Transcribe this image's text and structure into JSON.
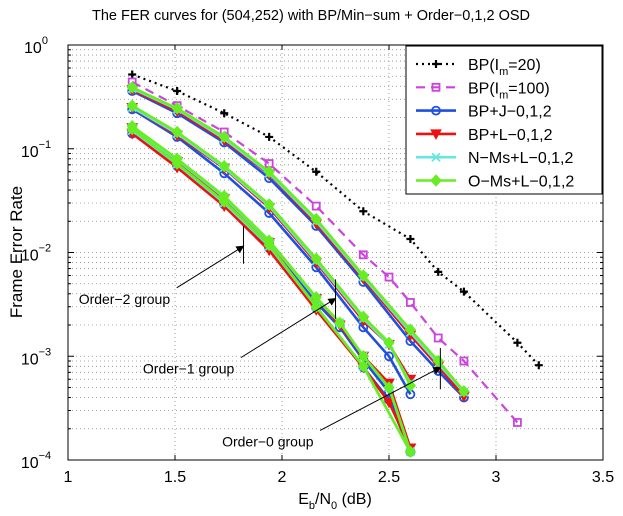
{
  "chart_data": {
    "type": "line",
    "title": "The FER curves for (504,252) with BP/Min−sum + Order−0,1,2 OSD",
    "xlabel": {
      "main": "E",
      "sub1": "b",
      "mid": "/N",
      "sub2": "0",
      "tail": " (dB)"
    },
    "ylabel": "Frame Error Rate",
    "xlim": [
      1,
      3.5
    ],
    "ylim": [
      0.0001,
      1
    ],
    "yscale": "log",
    "grid": true,
    "legend_position": "top-right",
    "x_ticks": [
      1,
      1.5,
      2,
      2.5,
      3,
      3.5
    ],
    "x_tick_labels": [
      "1",
      "1.5",
      "2",
      "2.5",
      "3",
      "3.5"
    ],
    "y_ticks": [
      {
        "base": "10",
        "exp": "0",
        "value": 1
      },
      {
        "base": "10",
        "exp": "−1",
        "value": 0.1
      },
      {
        "base": "10",
        "exp": "−2",
        "value": 0.01
      },
      {
        "base": "10",
        "exp": "−3",
        "value": 0.001
      },
      {
        "base": "10",
        "exp": "−4",
        "value": 0.0001
      }
    ],
    "legend": [
      {
        "pre": "BP(I",
        "sub": "m",
        "post": "=20)"
      },
      {
        "pre": "BP(I",
        "sub": "m",
        "post": "=100)"
      },
      {
        "pre": "BP+J−0,1,2",
        "sub": "",
        "post": ""
      },
      {
        "pre": "BP+L−0,1,2",
        "sub": "",
        "post": ""
      },
      {
        "pre": "N−Ms+L−0,1,2",
        "sub": "",
        "post": ""
      },
      {
        "pre": "O−Ms+L−0,1,2",
        "sub": "",
        "post": ""
      }
    ],
    "series": [
      {
        "name": "BP(Im=20)",
        "color": "#000000",
        "style": "dotted",
        "marker": "plus",
        "groups": [
          {
            "x": [
              1.3,
              1.51,
              1.73,
              1.94,
              2.16,
              2.38,
              2.6,
              2.73,
              2.85,
              3.1,
              3.2
            ],
            "y": [
              0.52,
              0.36,
              0.22,
              0.13,
              0.06,
              0.025,
              0.0135,
              0.0065,
              0.0042,
              0.00135,
              0.00082
            ]
          }
        ]
      },
      {
        "name": "BP(Im=100)",
        "color": "#cc44dd",
        "style": "dashed",
        "marker": "square",
        "groups": [
          {
            "x": [
              1.3,
              1.51,
              1.73,
              1.94,
              2.16,
              2.38,
              2.5,
              2.6,
              2.73,
              2.85,
              3.1
            ],
            "y": [
              0.44,
              0.26,
              0.145,
              0.072,
              0.028,
              0.0095,
              0.0058,
              0.0033,
              0.0015,
              0.0009,
              0.00023
            ]
          }
        ]
      },
      {
        "name": "BP+J-0,1,2",
        "color": "#1f4fe0",
        "style": "solid",
        "marker": "circle",
        "groups": [
          {
            "x": [
              1.3,
              1.51,
              1.73,
              1.94,
              2.16,
              2.38,
              2.5,
              2.6
            ],
            "y": [
              0.14,
              0.068,
              0.029,
              0.011,
              0.0029,
              0.00078,
              0.00038,
              0.00012
            ]
          },
          {
            "x": [
              1.3,
              1.51,
              1.73,
              1.94,
              2.16,
              2.27,
              2.38,
              2.5,
              2.6
            ],
            "y": [
              0.15,
              0.072,
              0.031,
              0.0122,
              0.0033,
              0.0019,
              0.00092,
              0.00045,
              0.00012
            ]
          },
          {
            "x": [
              1.3,
              1.51,
              1.73,
              1.94,
              2.16,
              2.38,
              2.5,
              2.6
            ],
            "y": [
              0.24,
              0.13,
              0.058,
              0.024,
              0.0072,
              0.0019,
              0.001,
              0.00043
            ]
          },
          {
            "x": [
              1.3,
              1.51,
              1.73,
              1.94,
              2.16,
              2.38,
              2.6,
              2.73,
              2.85
            ],
            "y": [
              0.36,
              0.22,
              0.115,
              0.052,
              0.018,
              0.0052,
              0.0014,
              0.00072,
              0.0004
            ]
          }
        ]
      },
      {
        "name": "BP+L-0,1,2",
        "color": "#ee1111",
        "style": "solid",
        "marker": "triangle-down",
        "groups": [
          {
            "x": [
              1.3,
              1.51,
              1.73,
              1.94,
              2.16,
              2.38,
              2.5,
              2.6
            ],
            "y": [
              0.14,
              0.066,
              0.028,
              0.0105,
              0.0028,
              0.00078,
              0.00036,
              0.00013
            ]
          },
          {
            "x": [
              1.3,
              1.51,
              1.73,
              1.94,
              2.16,
              2.27,
              2.38,
              2.5,
              2.6
            ],
            "y": [
              0.16,
              0.075,
              0.033,
              0.0125,
              0.0036,
              0.002,
              0.001,
              0.00055,
              0.00013
            ]
          },
          {
            "x": [
              1.3,
              1.51,
              1.73,
              1.94,
              2.16,
              2.38,
              2.5,
              2.6
            ],
            "y": [
              0.25,
              0.135,
              0.065,
              0.027,
              0.008,
              0.0022,
              0.0013,
              0.0006
            ]
          },
          {
            "x": [
              1.3,
              1.51,
              1.73,
              1.94,
              2.16,
              2.38,
              2.6,
              2.73,
              2.85
            ],
            "y": [
              0.37,
              0.23,
              0.12,
              0.057,
              0.019,
              0.0056,
              0.0016,
              0.0008,
              0.00041
            ]
          }
        ]
      },
      {
        "name": "N-Ms+L-0,1,2",
        "color": "#66e6dd",
        "style": "solid",
        "marker": "x",
        "groups": [
          {
            "x": [
              1.3,
              1.51,
              1.73,
              1.94,
              2.16,
              2.38,
              2.6
            ],
            "y": [
              0.15,
              0.071,
              0.03,
              0.0115,
              0.003,
              0.0008,
              0.00012
            ]
          },
          {
            "x": [
              1.3,
              1.51,
              1.73,
              1.94,
              2.16,
              2.27,
              2.38,
              2.5,
              2.6
            ],
            "y": [
              0.16,
              0.078,
              0.034,
              0.0128,
              0.0036,
              0.0021,
              0.001,
              0.0005,
              0.00012
            ]
          },
          {
            "x": [
              1.3,
              1.51,
              1.73,
              1.94,
              2.16,
              2.38,
              2.5,
              2.6
            ],
            "y": [
              0.25,
              0.14,
              0.066,
              0.028,
              0.0083,
              0.0023,
              0.0013,
              0.00055
            ]
          },
          {
            "x": [
              1.3,
              1.51,
              1.73,
              1.94,
              2.16,
              2.38,
              2.6,
              2.73,
              2.85
            ],
            "y": [
              0.38,
              0.24,
              0.125,
              0.058,
              0.02,
              0.0058,
              0.0017,
              0.00085,
              0.00045
            ]
          }
        ]
      },
      {
        "name": "O-Ms+L-0,1,2",
        "color": "#66ee22",
        "style": "solid",
        "marker": "diamond",
        "groups": [
          {
            "x": [
              1.3,
              1.51,
              1.73,
              1.94,
              2.16,
              2.38,
              2.6
            ],
            "y": [
              0.155,
              0.072,
              0.031,
              0.0118,
              0.003,
              0.0008,
              0.00012
            ]
          },
          {
            "x": [
              1.3,
              1.51,
              1.73,
              1.94,
              2.16,
              2.27,
              2.38,
              2.5,
              2.6
            ],
            "y": [
              0.165,
              0.08,
              0.035,
              0.013,
              0.0037,
              0.0021,
              0.001,
              0.0005,
              0.00012
            ]
          },
          {
            "x": [
              1.3,
              1.51,
              1.73,
              1.94,
              2.16,
              2.38,
              2.5,
              2.6
            ],
            "y": [
              0.26,
              0.145,
              0.068,
              0.029,
              0.0087,
              0.0024,
              0.00135,
              0.00052
            ]
          },
          {
            "x": [
              1.3,
              1.51,
              1.73,
              1.94,
              2.16,
              2.38,
              2.6,
              2.73,
              2.85
            ],
            "y": [
              0.39,
              0.245,
              0.13,
              0.06,
              0.021,
              0.006,
              0.0018,
              0.0009,
              0.00046
            ]
          }
        ]
      }
    ],
    "annotations": [
      {
        "name": "order-2-group",
        "text": "Order−2 group",
        "text_x": 1.05,
        "text_y": 0.0032,
        "arrow_to_x": 1.82,
        "arrow_to_y": 0.0115,
        "tick_x": 1.82,
        "tick_y_range": [
          0.0078,
          0.018
        ]
      },
      {
        "name": "order-1-group",
        "text": "Order−1 group",
        "text_x": 1.35,
        "text_y": 0.00068,
        "arrow_to_x": 2.25,
        "arrow_to_y": 0.0036,
        "tick_x": 2.25,
        "tick_y_range": [
          0.0023,
          0.0055
        ]
      },
      {
        "name": "order-0-group",
        "text": "Order−0 group",
        "text_x": 1.72,
        "text_y": 0.000135,
        "arrow_to_x": 2.74,
        "arrow_to_y": 0.00078,
        "tick_x": 2.74,
        "tick_y_range": [
          0.00048,
          0.0012
        ]
      }
    ]
  }
}
